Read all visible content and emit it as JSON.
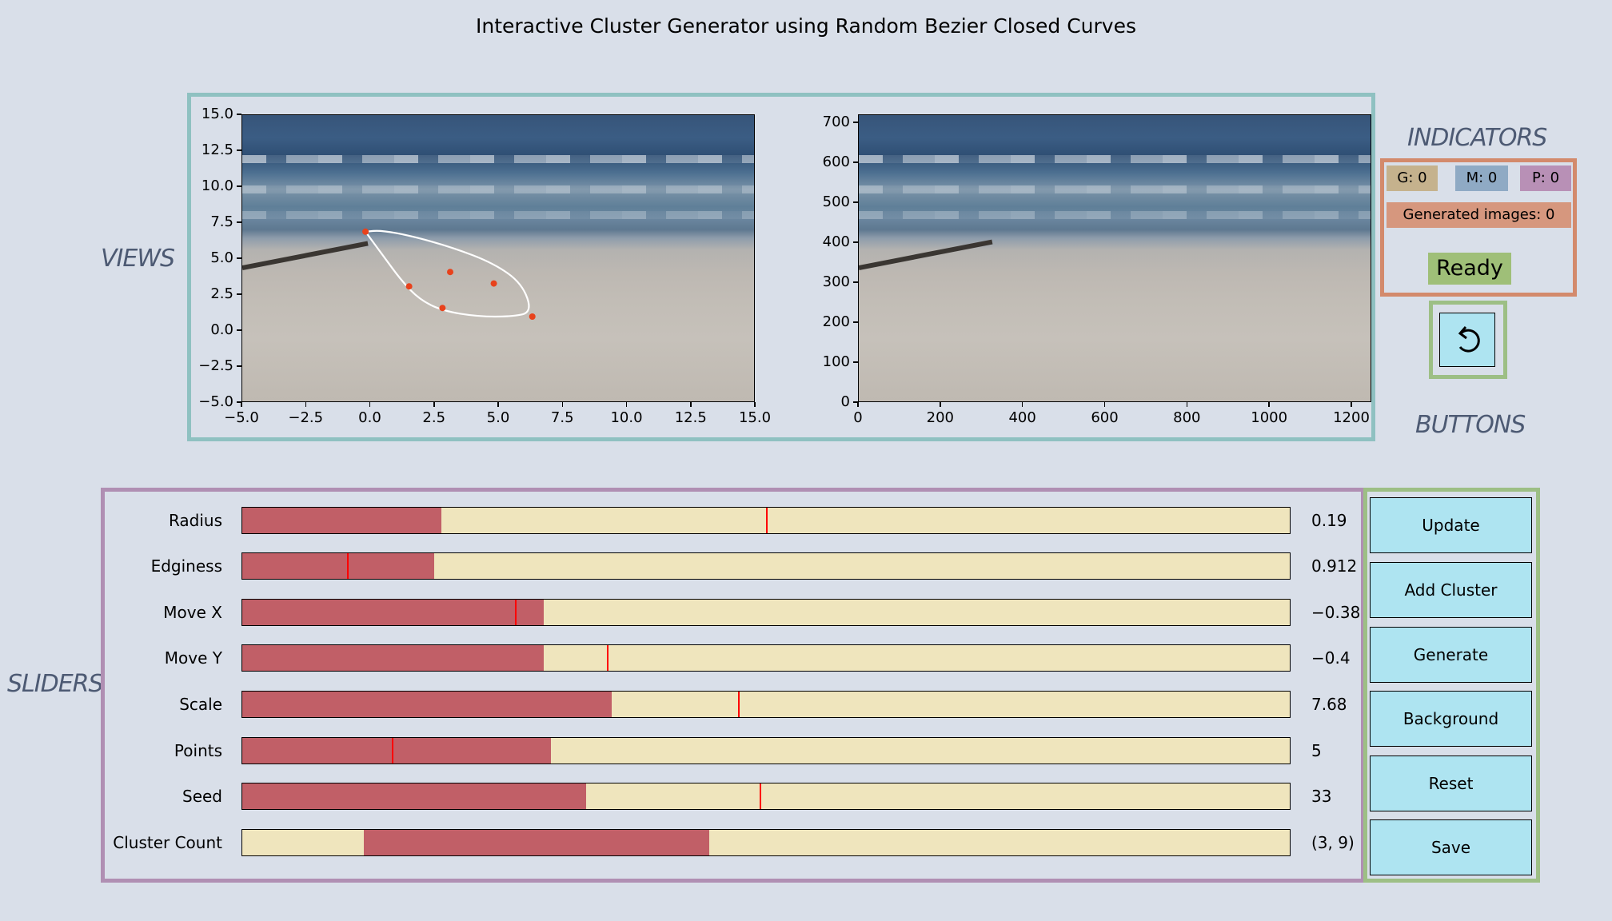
{
  "title": "Interactive Cluster Generator using Random Bezier Closed Curves",
  "labels": {
    "views": "VIEWS",
    "sliders": "SLIDERS",
    "indicators": "INDICATORS",
    "buttons": "BUTTONS"
  },
  "left_view": {
    "x_ticks": [
      "−5.0",
      "−2.5",
      "0.0",
      "2.5",
      "5.0",
      "7.5",
      "10.0",
      "12.5",
      "15.0"
    ],
    "y_ticks": [
      "15.0",
      "12.5",
      "10.0",
      "7.5",
      "5.0",
      "2.5",
      "0.0",
      "−2.5",
      "−5.0"
    ],
    "xlim": [
      -5,
      15
    ],
    "ylim": [
      -5,
      15
    ],
    "curve_color": "#ffffff",
    "point_color": "#e8421c",
    "control_points": [
      [
        -0.2,
        6.9
      ],
      [
        1.5,
        3.1
      ],
      [
        2.8,
        1.6
      ],
      [
        6.3,
        1.0
      ],
      [
        4.8,
        3.3
      ],
      [
        3.1,
        4.1
      ]
    ],
    "curve_points": [
      [
        -0.2,
        6.9
      ],
      [
        0.4,
        7.0
      ],
      [
        1.6,
        6.6
      ],
      [
        3.2,
        5.8
      ],
      [
        4.8,
        4.7
      ],
      [
        5.9,
        3.3
      ],
      [
        6.3,
        1.3
      ],
      [
        5.5,
        1.0
      ],
      [
        4.2,
        1.0
      ],
      [
        2.8,
        1.4
      ],
      [
        1.9,
        2.2
      ],
      [
        1.2,
        3.5
      ],
      [
        0.5,
        5.2
      ],
      [
        -0.2,
        6.9
      ]
    ]
  },
  "right_view": {
    "x_ticks": [
      "0",
      "200",
      "400",
      "600",
      "800",
      "1000",
      "1200"
    ],
    "y_ticks": [
      "700",
      "600",
      "500",
      "400",
      "300",
      "200",
      "100",
      "0"
    ],
    "xlim": [
      0,
      1280
    ],
    "ylim": [
      0,
      720
    ]
  },
  "indicators": {
    "g": "G:  0",
    "m": "M:  0",
    "p": "P:  0",
    "generated": "Generated images: 0",
    "status": "Ready",
    "colors": {
      "g": "#c5b28d",
      "m": "#8faac4",
      "p": "#b890b6",
      "generated": "#d6977e",
      "status": "#9fbf78"
    }
  },
  "undo_button": {
    "icon": "undo-arrow-icon"
  },
  "sliders": [
    {
      "label": "Radius",
      "value": "0.19",
      "fill_start": 0.0,
      "fill_end": 0.19,
      "init": 0.5
    },
    {
      "label": "Edginess",
      "value": "0.912",
      "fill_start": 0.0,
      "fill_end": 0.183,
      "init": 0.1
    },
    {
      "label": "Move X",
      "value": "−0.38",
      "fill_start": 0.0,
      "fill_end": 0.288,
      "init": 0.26
    },
    {
      "label": "Move Y",
      "value": "−0.4",
      "fill_start": 0.0,
      "fill_end": 0.288,
      "init": 0.348
    },
    {
      "label": "Scale",
      "value": "7.68",
      "fill_start": 0.0,
      "fill_end": 0.353,
      "init": 0.473
    },
    {
      "label": "Points",
      "value": "5",
      "fill_start": 0.0,
      "fill_end": 0.295,
      "init": 0.143
    },
    {
      "label": "Seed",
      "value": "33",
      "fill_start": 0.0,
      "fill_end": 0.328,
      "init": 0.494
    },
    {
      "label": "Cluster Count",
      "value": "(3, 9)",
      "fill_start": 0.116,
      "fill_end": 0.446,
      "init": null
    }
  ],
  "buttons": [
    "Update",
    "Add Cluster",
    "Generate",
    "Background",
    "Reset",
    "Save"
  ]
}
